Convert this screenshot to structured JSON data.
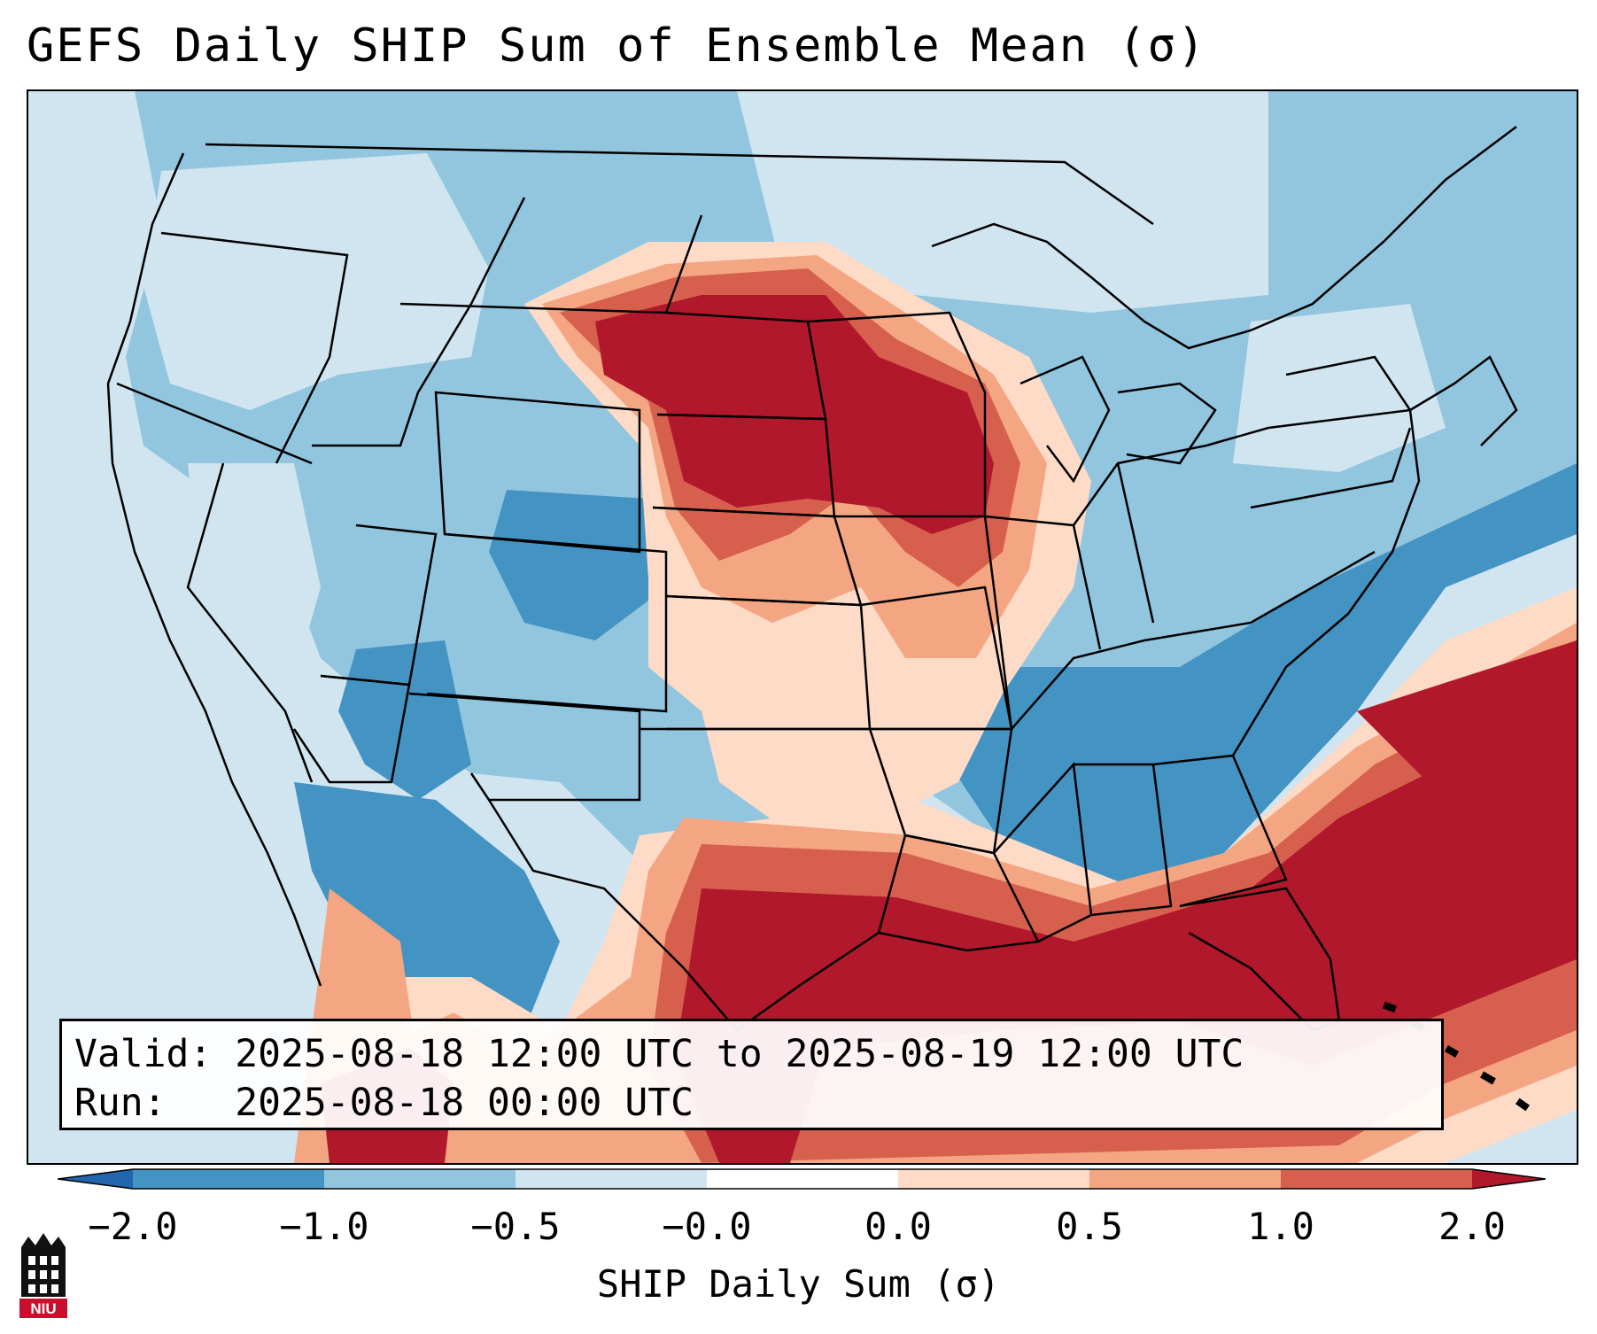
{
  "title": "GEFS Daily SHIP Sum of Ensemble Mean (σ)",
  "valid_line": "Valid: 2025-08-18 12:00 UTC to 2025-08-19 12:00 UTC",
  "run_line": "Run:   2025-08-18 00:00 UTC",
  "colorbar": {
    "label": "SHIP Daily Sum (σ)",
    "ticks": [
      "−2.0",
      "−1.0",
      "−0.5",
      "−0.0",
      "0.0",
      "0.5",
      "1.0",
      "2.0"
    ],
    "colors": {
      "under": "#2166ac",
      "bin1": "#4393c3",
      "bin2": "#92c5de",
      "bin3": "#d1e5f0",
      "bin4": "#fddbc7",
      "bin5": "#f4a582",
      "bin6": "#d6604d",
      "over": "#b2182b"
    }
  },
  "logo": {
    "text": "NIU",
    "icon": "niu-logo-icon"
  },
  "map": {
    "region": "Continental United States",
    "features": [
      "state-borders",
      "coastlines",
      "country-borders"
    ]
  }
}
